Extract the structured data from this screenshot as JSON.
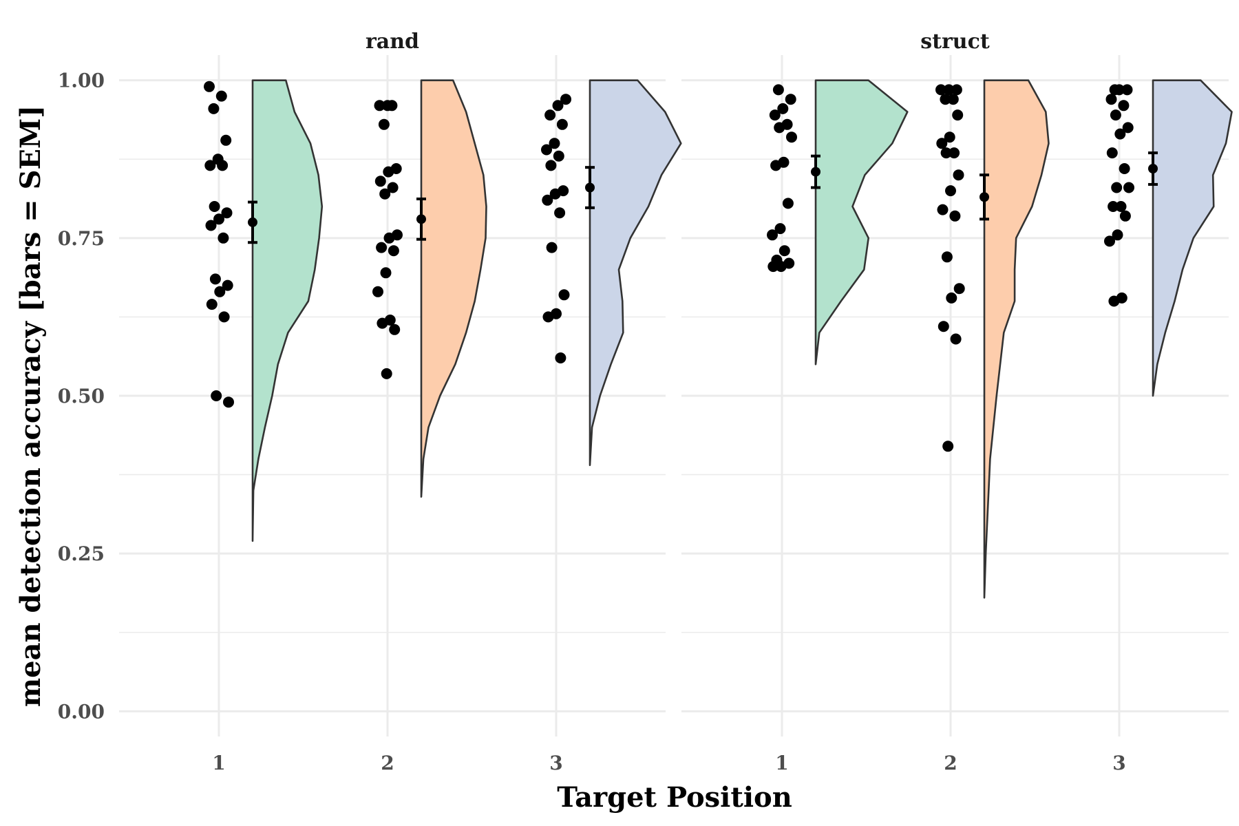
{
  "chart_data": {
    "type": "raincloud",
    "xlabel": "Target Position",
    "ylabel": "mean detection accuracy [bars = SEM]",
    "ylim": [
      -0.04,
      1.04
    ],
    "y_ticks": [
      0.0,
      0.25,
      0.5,
      0.75,
      1.0
    ],
    "y_tick_labels": [
      "0.00",
      "0.25",
      "0.50",
      "0.75",
      "1.00"
    ],
    "categories": [
      "1",
      "2",
      "3"
    ],
    "grid": true,
    "legend": "none",
    "colors": {
      "1": "#b3e2cd",
      "2": "#fdcdac",
      "3": "#cbd5e8",
      "grid": "#ebebeb",
      "outline": "#333333",
      "points": "#000000"
    },
    "panels": [
      {
        "name": "rand",
        "groups": [
          {
            "x": "1",
            "points": [
              0.99,
              0.975,
              0.955,
              0.905,
              0.875,
              0.865,
              0.865,
              0.8,
              0.79,
              0.78,
              0.77,
              0.75,
              0.685,
              0.675,
              0.665,
              0.645,
              0.625,
              0.5,
              0.49
            ],
            "mean": 0.775,
            "sem": 0.032,
            "violin_range": [
              0.27,
              1.0
            ],
            "density": [
              [
                0.27,
                0.0
              ],
              [
                0.35,
                0.01
              ],
              [
                0.4,
                0.08
              ],
              [
                0.45,
                0.17
              ],
              [
                0.5,
                0.27
              ],
              [
                0.55,
                0.35
              ],
              [
                0.6,
                0.49
              ],
              [
                0.65,
                0.77
              ],
              [
                0.7,
                0.86
              ],
              [
                0.75,
                0.92
              ],
              [
                0.8,
                0.96
              ],
              [
                0.85,
                0.91
              ],
              [
                0.9,
                0.8
              ],
              [
                0.95,
                0.58
              ],
              [
                1.0,
                0.46
              ]
            ]
          },
          {
            "x": "2",
            "points": [
              0.96,
              0.96,
              0.96,
              0.93,
              0.86,
              0.855,
              0.84,
              0.83,
              0.82,
              0.755,
              0.75,
              0.735,
              0.73,
              0.695,
              0.665,
              0.62,
              0.615,
              0.605,
              0.535
            ],
            "mean": 0.78,
            "sem": 0.032,
            "violin_range": [
              0.34,
              1.0
            ],
            "density": [
              [
                0.34,
                0.0
              ],
              [
                0.4,
                0.03
              ],
              [
                0.45,
                0.1
              ],
              [
                0.5,
                0.26
              ],
              [
                0.55,
                0.47
              ],
              [
                0.6,
                0.62
              ],
              [
                0.65,
                0.74
              ],
              [
                0.7,
                0.82
              ],
              [
                0.75,
                0.89
              ],
              [
                0.8,
                0.9
              ],
              [
                0.85,
                0.86
              ],
              [
                0.9,
                0.74
              ],
              [
                0.95,
                0.62
              ],
              [
                1.0,
                0.44
              ]
            ]
          },
          {
            "x": "3",
            "points": [
              0.97,
              0.96,
              0.945,
              0.93,
              0.9,
              0.89,
              0.88,
              0.865,
              0.825,
              0.82,
              0.81,
              0.79,
              0.735,
              0.66,
              0.63,
              0.625,
              0.56
            ],
            "mean": 0.83,
            "sem": 0.032,
            "violin_range": [
              0.39,
              1.0
            ],
            "density": [
              [
                0.39,
                0.0
              ],
              [
                0.45,
                0.03
              ],
              [
                0.5,
                0.14
              ],
              [
                0.55,
                0.29
              ],
              [
                0.6,
                0.46
              ],
              [
                0.65,
                0.45
              ],
              [
                0.7,
                0.4
              ],
              [
                0.75,
                0.56
              ],
              [
                0.8,
                0.81
              ],
              [
                0.85,
                0.99
              ],
              [
                0.9,
                1.26
              ],
              [
                0.95,
                1.04
              ],
              [
                1.0,
                0.66
              ]
            ]
          }
        ]
      },
      {
        "name": "struct",
        "groups": [
          {
            "x": "1",
            "points": [
              0.985,
              0.97,
              0.955,
              0.945,
              0.93,
              0.925,
              0.91,
              0.87,
              0.865,
              0.805,
              0.765,
              0.755,
              0.73,
              0.715,
              0.71,
              0.705,
              0.705
            ],
            "mean": 0.855,
            "sem": 0.025,
            "violin_range": [
              0.55,
              1.0
            ],
            "density": [
              [
                0.55,
                0.0
              ],
              [
                0.6,
                0.05
              ],
              [
                0.65,
                0.35
              ],
              [
                0.7,
                0.67
              ],
              [
                0.75,
                0.73
              ],
              [
                0.8,
                0.51
              ],
              [
                0.85,
                0.68
              ],
              [
                0.9,
                1.06
              ],
              [
                0.95,
                1.27
              ],
              [
                1.0,
                0.73
              ]
            ]
          },
          {
            "x": "2",
            "points": [
              0.985,
              0.985,
              0.985,
              0.97,
              0.97,
              0.945,
              0.91,
              0.9,
              0.885,
              0.885,
              0.85,
              0.825,
              0.795,
              0.785,
              0.72,
              0.67,
              0.655,
              0.61,
              0.59,
              0.42
            ],
            "mean": 0.815,
            "sem": 0.035,
            "violin_range": [
              0.18,
              1.0
            ],
            "density": [
              [
                0.18,
                0.0
              ],
              [
                0.25,
                0.02
              ],
              [
                0.3,
                0.04
              ],
              [
                0.4,
                0.08
              ],
              [
                0.5,
                0.17
              ],
              [
                0.6,
                0.27
              ],
              [
                0.65,
                0.42
              ],
              [
                0.7,
                0.42
              ],
              [
                0.75,
                0.44
              ],
              [
                0.8,
                0.66
              ],
              [
                0.85,
                0.79
              ],
              [
                0.9,
                0.89
              ],
              [
                0.95,
                0.85
              ],
              [
                1.0,
                0.61
              ]
            ]
          },
          {
            "x": "3",
            "points": [
              0.985,
              0.985,
              0.985,
              0.97,
              0.96,
              0.945,
              0.925,
              0.915,
              0.885,
              0.86,
              0.83,
              0.83,
              0.8,
              0.8,
              0.785,
              0.755,
              0.745,
              0.655,
              0.65
            ],
            "mean": 0.86,
            "sem": 0.025,
            "violin_range": [
              0.5,
              1.0
            ],
            "density": [
              [
                0.5,
                0.0
              ],
              [
                0.55,
                0.06
              ],
              [
                0.6,
                0.17
              ],
              [
                0.65,
                0.3
              ],
              [
                0.7,
                0.41
              ],
              [
                0.75,
                0.56
              ],
              [
                0.8,
                0.84
              ],
              [
                0.85,
                0.83
              ],
              [
                0.9,
                1.01
              ],
              [
                0.95,
                1.09
              ],
              [
                1.0,
                0.66
              ]
            ]
          }
        ]
      }
    ]
  }
}
